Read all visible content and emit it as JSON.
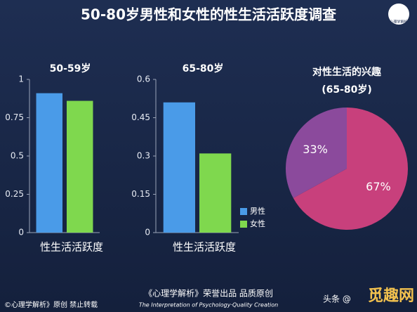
{
  "header": {
    "title": "50-80岁男性和女性的性生活活跃度调查",
    "logo": "心理学解析"
  },
  "chart_data": [
    {
      "type": "bar",
      "title": "50-59岁",
      "x_label": "性生活活跃度",
      "categories": [
        null
      ],
      "series": [
        {
          "name": "男性",
          "color": "#4a9be8",
          "values": [
            0.91
          ]
        },
        {
          "name": "女性",
          "color": "#7fd84e",
          "values": [
            0.86
          ]
        }
      ],
      "ylim": [
        0,
        1
      ],
      "yticks": [
        0,
        0.25,
        0.5,
        0.75,
        1
      ]
    },
    {
      "type": "bar",
      "title": "65-80岁",
      "x_label": "性生活活跃度",
      "categories": [
        null
      ],
      "series": [
        {
          "name": "男性",
          "color": "#4a9be8",
          "values": [
            0.51
          ]
        },
        {
          "name": "女性",
          "color": "#7fd84e",
          "values": [
            0.31
          ]
        }
      ],
      "ylim": [
        0,
        0.6
      ],
      "yticks": [
        0,
        0.15,
        0.3,
        0.45,
        0.6
      ],
      "legend": "lower right"
    },
    {
      "type": "pie",
      "title": "对性生活的兴趣",
      "subtitle": "(65-80岁)",
      "values": [
        67,
        33
      ],
      "value_labels": [
        "67%",
        "33%"
      ],
      "colors": [
        "#c8407c",
        "#8b4a9c"
      ]
    }
  ],
  "footer": {
    "brand": "《心理学解析》荣誉出品 品质原创",
    "tagline": "The Interpretation of Psychology·Quality Creation",
    "copyright": "©心理学解析》原创 禁止转载",
    "source": "头条 @",
    "watermark": "觅趣网"
  }
}
